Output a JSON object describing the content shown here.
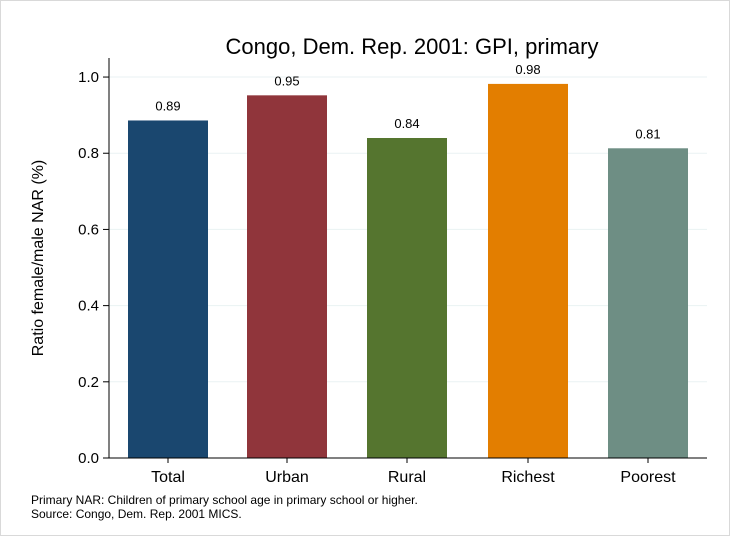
{
  "chart_data": {
    "type": "bar",
    "title": "Congo, Dem. Rep. 2001: GPI, primary",
    "xlabel": "",
    "ylabel": "Ratio female/male NAR (%)",
    "ylim": [
      0,
      1.05
    ],
    "yticks": [
      0.0,
      0.2,
      0.4,
      0.6,
      0.8,
      1.0
    ],
    "ytick_labels": [
      "0.0",
      "0.2",
      "0.4",
      "0.6",
      "0.8",
      "1.0"
    ],
    "grid": true,
    "legend": "none",
    "categories": [
      "Total",
      "Urban",
      "Rural",
      "Richest",
      "Poorest"
    ],
    "values": [
      0.886,
      0.952,
      0.84,
      0.982,
      0.813
    ],
    "value_labels": [
      "0.89",
      "0.95",
      "0.84",
      "0.98",
      "0.81"
    ],
    "colors": [
      "#1a476f",
      "#90353b",
      "#55752f",
      "#e37e00",
      "#6e8e84"
    ]
  },
  "notes": [
    "Primary NAR: Children of primary school age in primary school or higher.",
    "Source: Congo, Dem. Rep. 2001 MICS."
  ]
}
